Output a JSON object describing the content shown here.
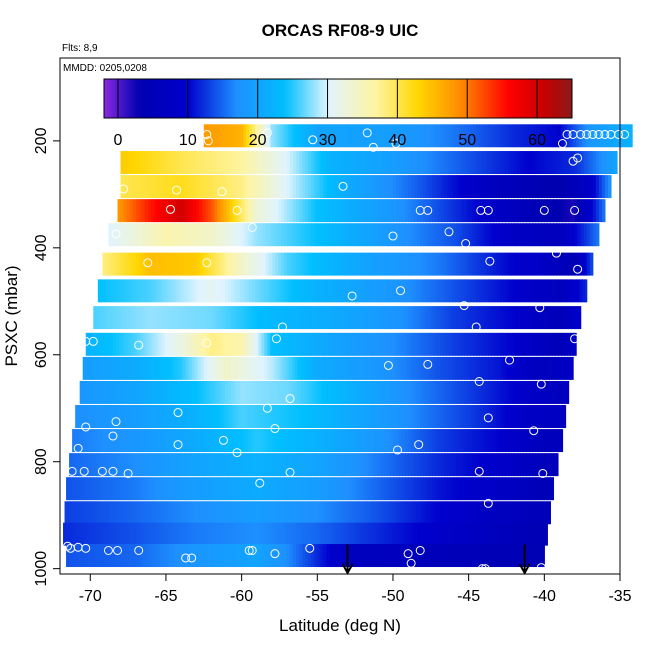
{
  "chart_data": {
    "type": "heatmap",
    "title": "ORCAS RF08-9 UIC",
    "flights_note": "Flts: 8,9",
    "date_note": "MMDD: 0205,0208",
    "xlabel": "Latitude (deg N)",
    "ylabel": "PSXC (mbar)",
    "xlim": [
      -72,
      -35
    ],
    "ylim": [
      1010,
      45
    ],
    "x_ticks": [
      -70,
      -65,
      -60,
      -55,
      -50,
      -45,
      -40,
      -35
    ],
    "x_tick_labels": [
      "-70",
      "-65",
      "-60",
      "-55",
      "-50",
      "-45",
      "-40",
      "-35"
    ],
    "y_ticks": [
      200,
      400,
      600,
      800,
      1000
    ],
    "y_tick_labels": [
      "200",
      "400",
      "600",
      "800",
      "1000"
    ],
    "colorbar": {
      "range": [
        -2,
        65
      ],
      "ticks": [
        0,
        10,
        20,
        30,
        40,
        50,
        60
      ],
      "tick_labels": [
        "0",
        "10",
        "20",
        "30",
        "40",
        "50",
        "60"
      ],
      "stops": [
        {
          "v": -2,
          "c": "#8a2be2"
        },
        {
          "v": 3,
          "c": "#0000b0"
        },
        {
          "v": 10,
          "c": "#0000cd"
        },
        {
          "v": 17,
          "c": "#1e90ff"
        },
        {
          "v": 24,
          "c": "#00bfff"
        },
        {
          "v": 30,
          "c": "#e0f4ff"
        },
        {
          "v": 37,
          "c": "#fff4a0"
        },
        {
          "v": 43,
          "c": "#ffd700"
        },
        {
          "v": 49,
          "c": "#ff8c00"
        },
        {
          "v": 56,
          "c": "#ff0000"
        },
        {
          "v": 61,
          "c": "#c80000"
        },
        {
          "v": 65,
          "c": "#8b1a1a"
        }
      ]
    },
    "band_height_mbar": 42,
    "bands": [
      {
        "p": 190,
        "lat_start": -62.5,
        "lat_end": -34.2,
        "profile": [
          [
            -62.5,
            48
          ],
          [
            -60,
            46
          ],
          [
            -58,
            28
          ],
          [
            -55,
            20
          ],
          [
            -50,
            19
          ],
          [
            -45,
            15
          ],
          [
            -42,
            12
          ],
          [
            -39,
            10
          ],
          [
            -37,
            18
          ],
          [
            -34.2,
            22
          ]
        ]
      },
      {
        "p": 240,
        "lat_start": -68,
        "lat_end": -35.2,
        "profile": [
          [
            -68,
            44
          ],
          [
            -64,
            40
          ],
          [
            -60,
            37
          ],
          [
            -57,
            30
          ],
          [
            -54,
            22
          ],
          [
            -50,
            19
          ],
          [
            -45,
            14
          ],
          [
            -41,
            10
          ],
          [
            -38,
            12
          ],
          [
            -35.2,
            20
          ]
        ]
      },
      {
        "p": 285,
        "lat_start": -68,
        "lat_end": -35.6,
        "profile": [
          [
            -68,
            40
          ],
          [
            -64,
            42
          ],
          [
            -60,
            38
          ],
          [
            -57,
            30
          ],
          [
            -53,
            21
          ],
          [
            -48,
            14
          ],
          [
            -43,
            6
          ],
          [
            -39,
            3
          ],
          [
            -37,
            8
          ],
          [
            -35.6,
            18
          ]
        ]
      },
      {
        "p": 330,
        "lat_start": -68.2,
        "lat_end": -36,
        "profile": [
          [
            -68.2,
            48
          ],
          [
            -66,
            55
          ],
          [
            -64,
            60
          ],
          [
            -62,
            52
          ],
          [
            -59,
            33
          ],
          [
            -55,
            24
          ],
          [
            -50,
            18
          ],
          [
            -45,
            11
          ],
          [
            -41,
            5
          ],
          [
            -38,
            2
          ],
          [
            -36,
            16
          ]
        ]
      },
      {
        "p": 375,
        "lat_start": -68.8,
        "lat_end": -36.4,
        "profile": [
          [
            -68.8,
            30
          ],
          [
            -65,
            36
          ],
          [
            -62,
            34
          ],
          [
            -59,
            28
          ],
          [
            -55,
            24
          ],
          [
            -50,
            18
          ],
          [
            -46,
            14
          ],
          [
            -42,
            8
          ],
          [
            -39,
            6
          ],
          [
            -36.4,
            16
          ]
        ]
      },
      {
        "p": 430,
        "lat_start": -69.2,
        "lat_end": -36.8,
        "profile": [
          [
            -69.2,
            38
          ],
          [
            -66,
            45
          ],
          [
            -63,
            44
          ],
          [
            -60,
            34
          ],
          [
            -57,
            26
          ],
          [
            -52,
            20
          ],
          [
            -47,
            16
          ],
          [
            -43,
            11
          ],
          [
            -40,
            8
          ],
          [
            -38,
            4
          ],
          [
            -36.8,
            14
          ]
        ]
      },
      {
        "p": 480,
        "lat_start": -69.5,
        "lat_end": -37.2,
        "profile": [
          [
            -69.5,
            24
          ],
          [
            -66,
            26
          ],
          [
            -62,
            31
          ],
          [
            -59,
            27
          ],
          [
            -55,
            22
          ],
          [
            -50,
            18
          ],
          [
            -46,
            14
          ],
          [
            -42,
            10
          ],
          [
            -39,
            6
          ],
          [
            -37.2,
            12
          ]
        ]
      },
      {
        "p": 530,
        "lat_start": -69.8,
        "lat_end": -37.6,
        "profile": [
          [
            -69.8,
            26
          ],
          [
            -66,
            28
          ],
          [
            -62,
            27
          ],
          [
            -58,
            23
          ],
          [
            -54,
            21
          ],
          [
            -50,
            18
          ],
          [
            -46,
            13
          ],
          [
            -42,
            10
          ],
          [
            -39,
            5
          ],
          [
            -37.6,
            10
          ]
        ]
      },
      {
        "p": 580,
        "lat_start": -70.3,
        "lat_end": -37.9,
        "profile": [
          [
            -70.3,
            22
          ],
          [
            -67,
            26
          ],
          [
            -64,
            32
          ],
          [
            -62,
            38
          ],
          [
            -60,
            36
          ],
          [
            -58,
            24
          ],
          [
            -54,
            20
          ],
          [
            -50,
            17
          ],
          [
            -46,
            13
          ],
          [
            -42,
            10
          ],
          [
            -39,
            5
          ],
          [
            -37.9,
            9
          ]
        ]
      },
      {
        "p": 625,
        "lat_start": -70.5,
        "lat_end": -38.1,
        "profile": [
          [
            -70.5,
            19
          ],
          [
            -67,
            21
          ],
          [
            -64,
            25
          ],
          [
            -61,
            34
          ],
          [
            -58,
            29
          ],
          [
            -55,
            21
          ],
          [
            -51,
            18
          ],
          [
            -47,
            14
          ],
          [
            -43,
            11
          ],
          [
            -40,
            6
          ],
          [
            -38.1,
            8
          ]
        ]
      },
      {
        "p": 670,
        "lat_start": -70.7,
        "lat_end": -38.4,
        "profile": [
          [
            -70.7,
            18
          ],
          [
            -67,
            20
          ],
          [
            -63,
            24
          ],
          [
            -60,
            28
          ],
          [
            -57,
            27
          ],
          [
            -53,
            22
          ],
          [
            -49,
            17
          ],
          [
            -45,
            13
          ],
          [
            -42,
            10
          ],
          [
            -39,
            6
          ],
          [
            -38.4,
            8
          ]
        ]
      },
      {
        "p": 715,
        "lat_start": -71,
        "lat_end": -38.6,
        "profile": [
          [
            -71,
            17
          ],
          [
            -67,
            19
          ],
          [
            -63,
            22
          ],
          [
            -60,
            26
          ],
          [
            -56,
            24
          ],
          [
            -52,
            20
          ],
          [
            -48,
            16
          ],
          [
            -44,
            12
          ],
          [
            -41,
            8
          ],
          [
            -38.6,
            7
          ]
        ]
      },
      {
        "p": 760,
        "lat_start": -71.2,
        "lat_end": -38.8,
        "profile": [
          [
            -71.2,
            16
          ],
          [
            -67,
            18
          ],
          [
            -63,
            21
          ],
          [
            -59,
            25
          ],
          [
            -55,
            22
          ],
          [
            -51,
            18
          ],
          [
            -47,
            13
          ],
          [
            -43,
            10
          ],
          [
            -40,
            6
          ],
          [
            -38.8,
            6
          ]
        ]
      },
      {
        "p": 805,
        "lat_start": -71.4,
        "lat_end": -39.1,
        "profile": [
          [
            -71.4,
            15
          ],
          [
            -67,
            17
          ],
          [
            -63,
            20
          ],
          [
            -59,
            22
          ],
          [
            -55,
            20
          ],
          [
            -51,
            16
          ],
          [
            -47,
            12
          ],
          [
            -43,
            9
          ],
          [
            -40,
            6
          ],
          [
            -39.1,
            6
          ]
        ]
      },
      {
        "p": 850,
        "lat_start": -71.6,
        "lat_end": -39.4,
        "profile": [
          [
            -71.6,
            14
          ],
          [
            -67,
            16
          ],
          [
            -63,
            19
          ],
          [
            -59,
            21
          ],
          [
            -55,
            19
          ],
          [
            -51,
            15
          ],
          [
            -47,
            11
          ],
          [
            -43,
            8
          ],
          [
            -40,
            5
          ],
          [
            -39.4,
            5
          ]
        ]
      },
      {
        "p": 895,
        "lat_start": -71.7,
        "lat_end": -39.6,
        "profile": [
          [
            -71.7,
            13
          ],
          [
            -67,
            15
          ],
          [
            -63,
            17
          ],
          [
            -59,
            19
          ],
          [
            -55,
            17
          ],
          [
            -51,
            14
          ],
          [
            -47,
            10
          ],
          [
            -43,
            7
          ],
          [
            -40,
            5
          ],
          [
            -39.6,
            5
          ]
        ]
      },
      {
        "p": 935,
        "lat_start": -71.8,
        "lat_end": -39.8,
        "profile": [
          [
            -71.8,
            12
          ],
          [
            -67,
            14
          ],
          [
            -63,
            16
          ],
          [
            -59,
            17
          ],
          [
            -55,
            15
          ],
          [
            -51,
            12
          ],
          [
            -47,
            9
          ],
          [
            -43,
            6
          ],
          [
            -39.8,
            4
          ]
        ]
      },
      {
        "p": 975,
        "lat_start": -71.6,
        "lat_end": -40,
        "profile": [
          [
            -71.6,
            14
          ],
          [
            -67,
            15
          ],
          [
            -63,
            18
          ],
          [
            -59,
            20
          ],
          [
            -57,
            17
          ],
          [
            -53,
            7
          ],
          [
            -49,
            6
          ],
          [
            -45,
            5
          ],
          [
            -40,
            4
          ]
        ]
      }
    ],
    "markers": [
      [
        -62.3,
        188
      ],
      [
        -62.2,
        200
      ],
      [
        -58.3,
        185
      ],
      [
        -55.3,
        198
      ],
      [
        -51.7,
        185
      ],
      [
        -51.3,
        212
      ],
      [
        -49.8,
        205
      ],
      [
        -38.8,
        205
      ],
      [
        -38.5,
        188
      ],
      [
        -38.1,
        188
      ],
      [
        -37.6,
        188
      ],
      [
        -37.2,
        188
      ],
      [
        -36.8,
        188
      ],
      [
        -36.4,
        188
      ],
      [
        -36,
        188
      ],
      [
        -35.6,
        188
      ],
      [
        -35.1,
        188
      ],
      [
        -34.7,
        188
      ],
      [
        -38.1,
        238
      ],
      [
        -37.8,
        232
      ],
      [
        -67.8,
        290
      ],
      [
        -64.3,
        292
      ],
      [
        -61.3,
        295
      ],
      [
        -53.3,
        285
      ],
      [
        -64.7,
        328
      ],
      [
        -60.3,
        330
      ],
      [
        -48.2,
        330
      ],
      [
        -47.7,
        330
      ],
      [
        -44.2,
        330
      ],
      [
        -43.7,
        330
      ],
      [
        -40,
        330
      ],
      [
        -38,
        330
      ],
      [
        -68.3,
        374
      ],
      [
        -59.3,
        362
      ],
      [
        -50,
        378
      ],
      [
        -46.3,
        370
      ],
      [
        -45.2,
        392
      ],
      [
        -43.6,
        425
      ],
      [
        -39.2,
        410
      ],
      [
        -37.8,
        440
      ],
      [
        -66.2,
        428
      ],
      [
        -62.3,
        428
      ],
      [
        -52.7,
        490
      ],
      [
        -45.3,
        508
      ],
      [
        -49.5,
        480
      ],
      [
        -40.3,
        512
      ],
      [
        -57.3,
        548
      ],
      [
        -44.5,
        548
      ],
      [
        -70.3,
        575
      ],
      [
        -69.8,
        575
      ],
      [
        -66.8,
        582
      ],
      [
        -62.3,
        578
      ],
      [
        -57.7,
        570
      ],
      [
        -38,
        570
      ],
      [
        -50.3,
        620
      ],
      [
        -47.7,
        618
      ],
      [
        -42.3,
        610
      ],
      [
        -44.3,
        650
      ],
      [
        -40.2,
        655
      ],
      [
        -56.8,
        682
      ],
      [
        -58.3,
        700
      ],
      [
        -64.2,
        708
      ],
      [
        -68.3,
        725
      ],
      [
        -70.3,
        735
      ],
      [
        -68.5,
        752
      ],
      [
        -64.2,
        768
      ],
      [
        -61.2,
        760
      ],
      [
        -60.3,
        783
      ],
      [
        -70.8,
        775
      ],
      [
        -57.8,
        738
      ],
      [
        -43.7,
        718
      ],
      [
        -40.7,
        742
      ],
      [
        -38.2,
        765
      ],
      [
        -49.7,
        778
      ],
      [
        -48.3,
        768
      ],
      [
        -71.2,
        818
      ],
      [
        -70.4,
        818
      ],
      [
        -69.2,
        818
      ],
      [
        -68.5,
        818
      ],
      [
        -67.5,
        822
      ],
      [
        -58.8,
        840
      ],
      [
        -56.8,
        820
      ],
      [
        -44.3,
        818
      ],
      [
        -40.1,
        822
      ],
      [
        -43.7,
        878
      ],
      [
        -39.3,
        920
      ],
      [
        -71.5,
        958
      ],
      [
        -71.3,
        962
      ],
      [
        -70.8,
        960
      ],
      [
        -70.3,
        962
      ],
      [
        -68.8,
        966
      ],
      [
        -68.2,
        966
      ],
      [
        -66.8,
        966
      ],
      [
        -63.7,
        980
      ],
      [
        -63.3,
        980
      ],
      [
        -59.5,
        966
      ],
      [
        -59.3,
        966
      ],
      [
        -57.8,
        972
      ],
      [
        -55.5,
        962
      ],
      [
        -49,
        972
      ],
      [
        -48.8,
        990
      ],
      [
        -48.2,
        966
      ],
      [
        -44.1,
        1000
      ],
      [
        -43.9,
        1000
      ],
      [
        -40.2,
        998
      ],
      [
        -39.6,
        1002
      ]
    ],
    "arrows": [
      {
        "x": -53,
        "p_top": 955,
        "p_bottom": 1008
      },
      {
        "x": -41.3,
        "p_top": 955,
        "p_bottom": 1008
      }
    ]
  }
}
